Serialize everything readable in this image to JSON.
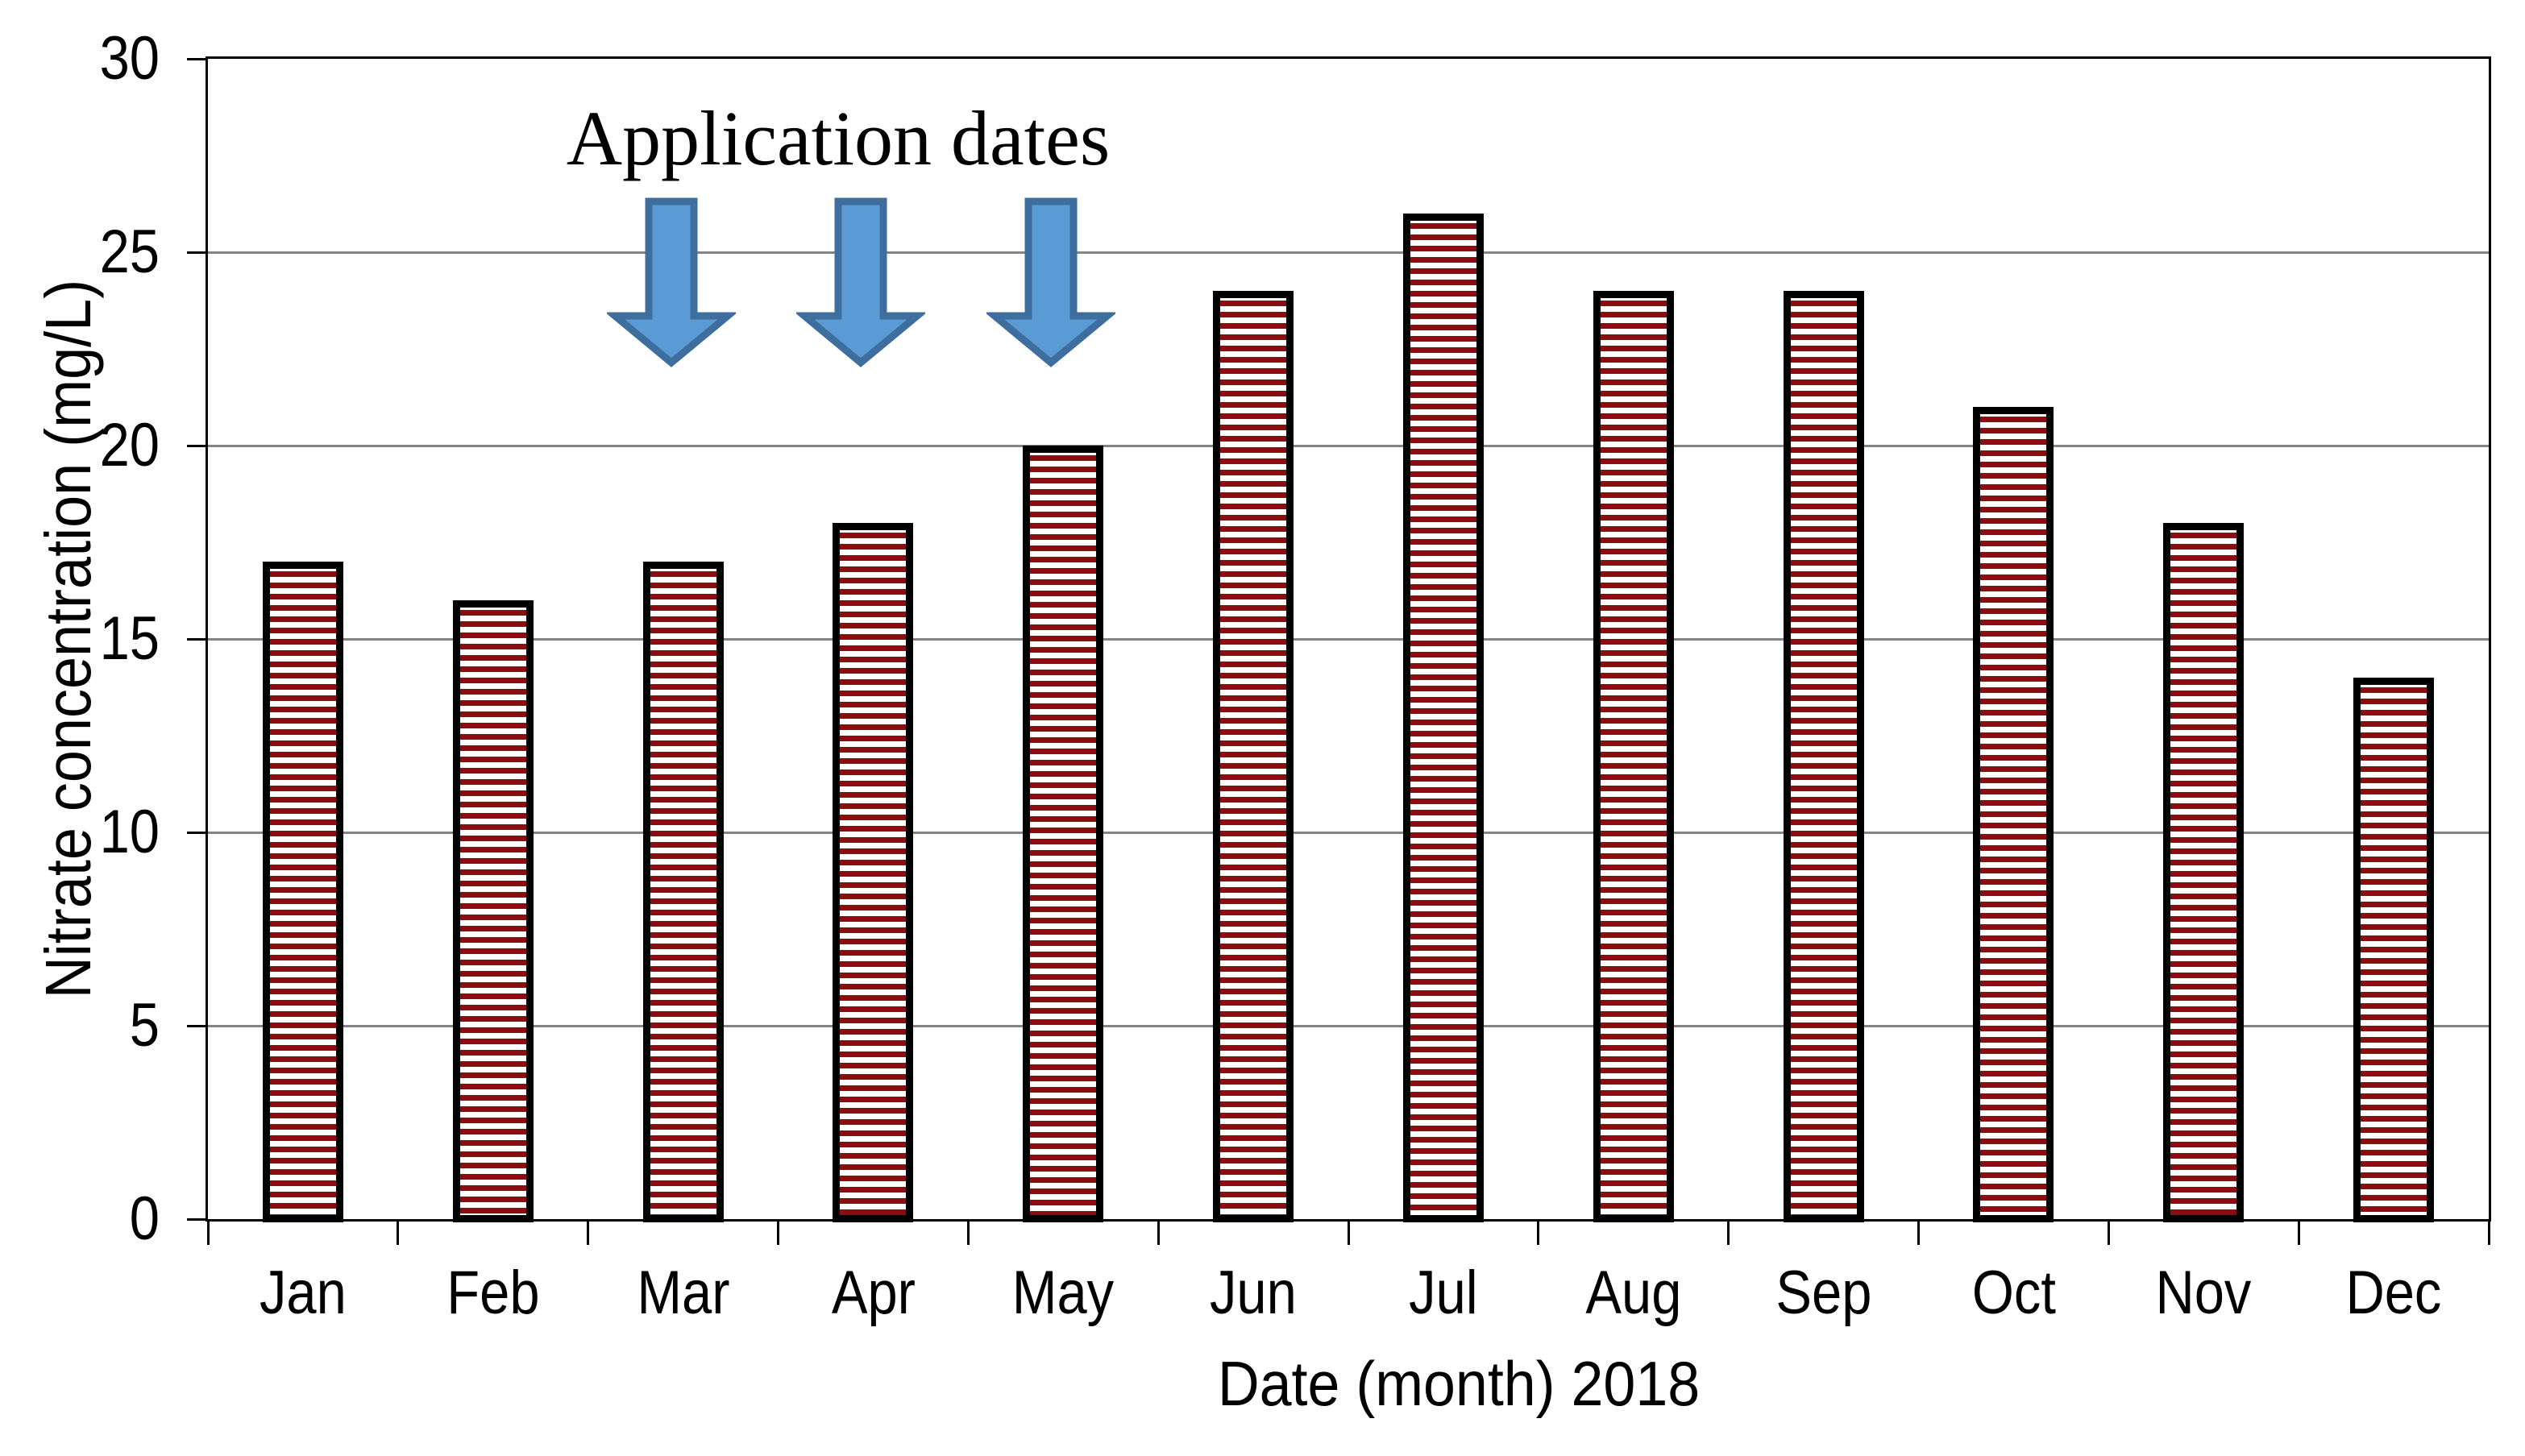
{
  "chart_data": {
    "type": "bar",
    "title": "",
    "categories": [
      "Jan",
      "Feb",
      "Mar",
      "Apr",
      "May",
      "Jun",
      "Jul",
      "Aug",
      "Sep",
      "Oct",
      "Nov",
      "Dec"
    ],
    "values": [
      17,
      16,
      17,
      18,
      20,
      24,
      26,
      24,
      24,
      21,
      18,
      14
    ],
    "xlabel": "Date (month) 2018",
    "ylabel": "Nitrate concentration (mg/L)",
    "ylim": [
      0,
      30
    ],
    "yticks": [
      0,
      5,
      10,
      15,
      20,
      25,
      30
    ],
    "grid": "horizontal-major",
    "legend": "none",
    "annotation": {
      "text": "Application dates",
      "target_months": [
        "Mar",
        "Apr",
        "May"
      ]
    },
    "colors": {
      "bar_stripe": "#8b0d11",
      "bar_background": "#ffffff",
      "bar_border": "#000000",
      "gridline": "#848484",
      "axis": "#000000",
      "arrow_fill": "#5b9bd5",
      "arrow_border": "#3d6e9e",
      "text": "#000000"
    }
  }
}
